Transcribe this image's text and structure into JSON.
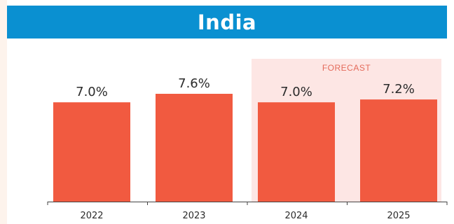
{
  "chart_data": {
    "type": "bar",
    "title": "India",
    "categories": [
      "2022",
      "2023",
      "2024",
      "2025"
    ],
    "values": [
      7.0,
      7.6,
      7.0,
      7.2
    ],
    "value_labels": [
      "7.0%",
      "7.6%",
      "7.0%",
      "7.2%"
    ],
    "forecast": {
      "label": "FORECAST",
      "categories": [
        "2024",
        "2025"
      ]
    },
    "ylim": [
      0,
      7.6
    ],
    "grid": false,
    "legend": "none"
  },
  "colors": {
    "banner": "#0a90d1",
    "bar": "#f15a40",
    "forecast_bg": "#fde6e4",
    "forecast_text": "#e46a5a",
    "axis": "#444444"
  }
}
